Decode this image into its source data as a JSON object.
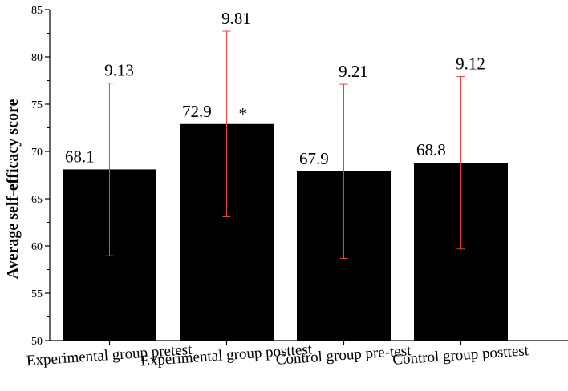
{
  "chart_data": {
    "type": "bar",
    "title": "",
    "xlabel": "",
    "ylabel": "Average self-efficacy score",
    "ylim": [
      50,
      85
    ],
    "yticks": [
      50,
      55,
      60,
      65,
      70,
      75,
      80,
      85
    ],
    "categories": [
      "Experimental group pretest",
      "Experimental group posttest",
      "Control group pre-test",
      "Control group posttest"
    ],
    "values": [
      68.1,
      72.9,
      67.9,
      68.8
    ],
    "value_labels": [
      "68.1",
      "72.9",
      "67.9",
      "68.8"
    ],
    "errors": [
      9.13,
      9.81,
      9.21,
      9.12
    ],
    "error_labels": [
      "9.13",
      "9.81",
      "9.21",
      "9.12"
    ],
    "annotations": [
      {
        "category_index": 1,
        "text": "*"
      }
    ],
    "bar_color": "#000000",
    "error_color": "#e8423a",
    "grid": false,
    "legend": "none"
  }
}
